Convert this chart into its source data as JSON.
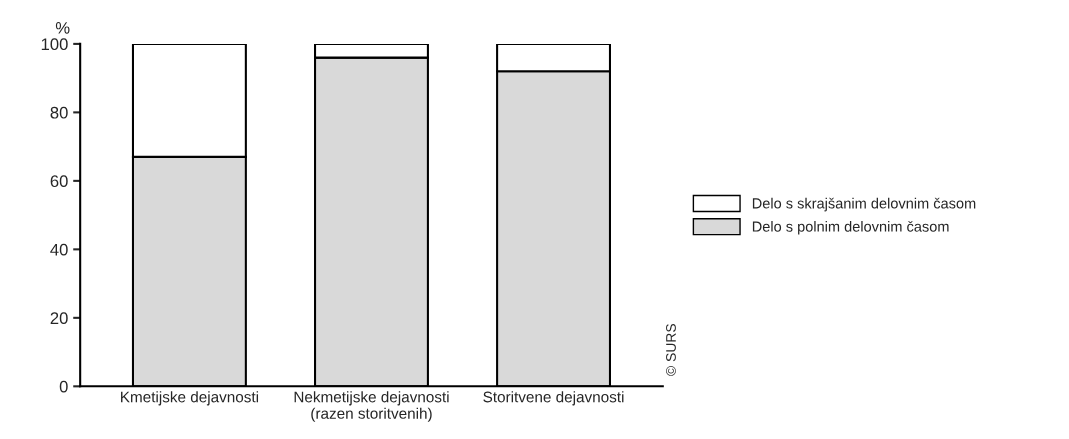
{
  "chart_data": {
    "type": "bar",
    "stacked": true,
    "ylabel": "%",
    "categories": [
      "Kmetijske dejavnosti",
      "Nekmetijske dejavnosti\n(razen storitvenih)",
      "Storitvene dejavnosti"
    ],
    "series": [
      {
        "name": "Delo s polnim delovnim časom",
        "color": "#d9d9d9",
        "values": [
          67,
          96,
          92
        ]
      },
      {
        "name": "Delo s skrajšanim delovnim časom",
        "color": "#ffffff",
        "values": [
          33,
          4,
          8
        ]
      }
    ],
    "ylim": [
      0,
      100
    ],
    "yticks": [
      0,
      20,
      40,
      60,
      80,
      100
    ],
    "grid": false,
    "legend": "right",
    "annotations": [
      "© SURS"
    ]
  }
}
